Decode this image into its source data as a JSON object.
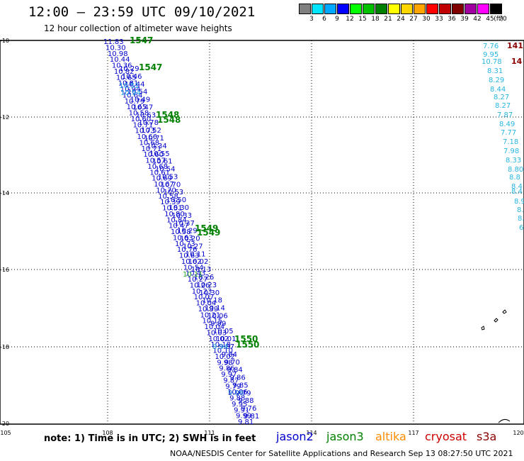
{
  "title": "12:00 – 23:59 UTC 09/10/2021",
  "subtitle": "12 hour collection of altimeter wave heights",
  "legend": {
    "unit": "(ft)",
    "bins": [
      {
        "label": "3",
        "color": "#808080"
      },
      {
        "label": "6",
        "color": "#00e5ff"
      },
      {
        "label": "9",
        "color": "#00a8ff"
      },
      {
        "label": "12",
        "color": "#0000ff"
      },
      {
        "label": "15",
        "color": "#00ff00"
      },
      {
        "label": "18",
        "color": "#00c000"
      },
      {
        "label": "21",
        "color": "#008000"
      },
      {
        "label": "24",
        "color": "#ffff00"
      },
      {
        "label": "27",
        "color": "#ffd700"
      },
      {
        "label": "30",
        "color": "#ffa500"
      },
      {
        "label": "33",
        "color": "#ff0000"
      },
      {
        "label": "36",
        "color": "#c00000"
      },
      {
        "label": "39",
        "color": "#800000"
      },
      {
        "label": "42",
        "color": "#a000a0"
      },
      {
        "label": "45",
        "color": "#ff00ff"
      },
      {
        "label": "70",
        "color": "#000000"
      }
    ]
  },
  "axes": {
    "x_ticks": [
      "105",
      "108",
      "111",
      "114",
      "117",
      "120"
    ],
    "y_ticks": [
      "-10",
      "-12",
      "-14",
      "-16",
      "-18",
      "-20"
    ]
  },
  "tracks": {
    "jason2_main": {
      "color": "#0000cc",
      "values": [
        "11.83",
        "10.30",
        "10.98",
        "10.44",
        "10.36",
        "10.82",
        "10.65",
        "10.81",
        "10.94",
        "10.64",
        "10.79",
        "10.65",
        "10.58",
        "10.60",
        "10.71",
        "10.73",
        "10.66",
        "10.68",
        "10.71",
        "10.60",
        "10.57",
        "10.68",
        "10.61",
        "10.69",
        "10.67",
        "10.70",
        "10.58",
        "10.39",
        "10.51",
        "10.80",
        "10.84",
        "10.47",
        "10.58",
        "10.63",
        "10.73",
        "10.76",
        "10.63",
        "10.62",
        "10.54",
        "10.43",
        "10.27",
        "10.26",
        "10.23",
        "10.07",
        "10.04",
        "10.39",
        "10.21",
        "10.15",
        "10.04",
        "10.03",
        "10.02",
        "10.18",
        "10.10",
        "10.02",
        "9.98",
        "9.86",
        "9.97",
        "9.87",
        "9.79",
        "10.06",
        "9.88",
        "9.95",
        "9.91",
        "9.99",
        "9.81"
      ]
    },
    "jason2_second": {
      "color": "#0000cc",
      "values": [
        "10.29",
        "10.46",
        "10.44",
        "10.54",
        "10.49",
        "10.47",
        "10.63",
        "10.78",
        "10.52",
        "10.71",
        "10.34",
        "10.55",
        "10.61",
        "10.54",
        "10.53",
        "10.70",
        "10.53",
        "10.50",
        "10.30",
        "10.33",
        "10.37",
        "10.29",
        "10.20",
        "10.27",
        "10.11",
        "10.02",
        "10.13",
        "10.26",
        "10.23",
        "10.30",
        "10.18",
        "10.14",
        "10.06",
        "9.99",
        "10.05",
        "10.01",
        "9.87",
        "9.84",
        "9.70",
        "9.84",
        "9.86",
        "9.85",
        "9.79",
        "9.88",
        "9.76",
        "9.81"
      ]
    },
    "highlight_points": [
      {
        "value": "10.51",
        "color": "#1aa0e6"
      },
      {
        "value": "10.94",
        "color": "#1aa0e6"
      },
      {
        "value": "10.11",
        "color": "#2ba72b"
      },
      {
        "value": "8.94",
        "color": "#29a6d8"
      },
      {
        "value": "9.06",
        "color": "#1a7fd8"
      }
    ],
    "pass_labels": [
      "1547",
      "1547",
      "1548",
      "1548",
      "1549",
      "1549",
      "1550",
      "1550"
    ],
    "pass_color": "#008000",
    "east_track": {
      "values": [
        "7.76",
        "9.95",
        "10.78",
        "8.31",
        "8.29",
        "8.44",
        "8.27",
        "8.27",
        "7.87",
        "8.49",
        "7.77",
        "7.18",
        "7.98",
        "8.33",
        "8.80",
        "8.8",
        "8.4",
        "8.4",
        "8.9",
        "8.",
        "8.",
        "6"
      ]
    },
    "east_red": [
      "141",
      "14"
    ],
    "east_red_color": "#8b0000"
  },
  "note": "note: 1) Time is in UTC; 2) SWH is in feet",
  "satellites": [
    {
      "name": "jason2",
      "color": "#0000cc"
    },
    {
      "name": "jason3",
      "color": "#008000"
    },
    {
      "name": "altika",
      "color": "#ff8c00"
    },
    {
      "name": "cryosat",
      "color": "#cc0000"
    },
    {
      "name": "s3a",
      "color": "#8b0000"
    }
  ],
  "credit": "NOAA/NESDIS Center for Satellite Applications and Research   Sep 13 08:27:50 UTC 2021"
}
